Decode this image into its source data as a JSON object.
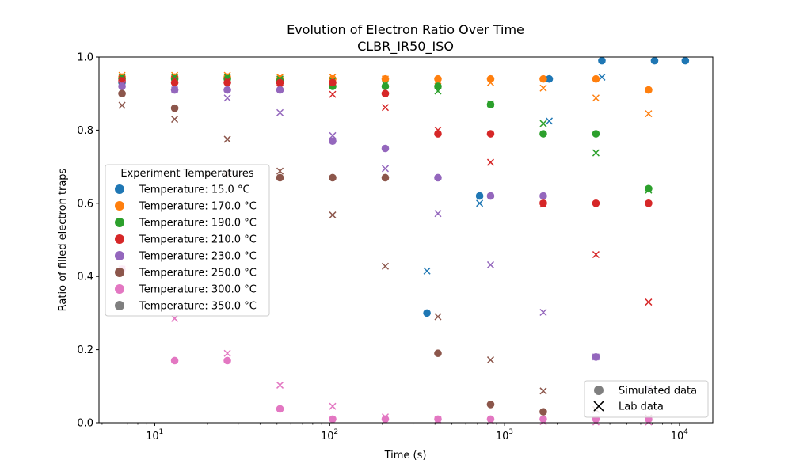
{
  "chart_data": {
    "type": "scatter",
    "title": "Evolution of Electron Ratio Over Time",
    "subtitle": "CLBR_IR50_ISO",
    "xlabel": "Time (s)",
    "ylabel": "Ratio of filled electron traps",
    "xscale": "log",
    "xlim": [
      4.8,
      15500
    ],
    "ylim": [
      0,
      1.0
    ],
    "x_ticks": [
      {
        "value": 10,
        "label": "10"
      },
      {
        "value": 100,
        "label": "10"
      },
      {
        "value": 1000,
        "label": "10"
      },
      {
        "value": 10000,
        "label": "10"
      }
    ],
    "x_tick_exponents": [
      "1",
      "2",
      "3",
      "4"
    ],
    "y_ticks": [
      {
        "value": 0.0,
        "label": "0.0"
      },
      {
        "value": 0.2,
        "label": "0.2"
      },
      {
        "value": 0.4,
        "label": "0.4"
      },
      {
        "value": 0.6,
        "label": "0.6"
      },
      {
        "value": 0.8,
        "label": "0.8"
      },
      {
        "value": 1.0,
        "label": "1.0"
      }
    ],
    "grid": false,
    "legend": {
      "title": "Experiment Temperatures",
      "placement": "center-left",
      "entries": [
        {
          "label": "Temperature: 15.0 °C",
          "color": "#1f77b4"
        },
        {
          "label": "Temperature: 170.0 °C",
          "color": "#ff7f0e"
        },
        {
          "label": "Temperature: 190.0 °C",
          "color": "#2ca02c"
        },
        {
          "label": "Temperature: 210.0 °C",
          "color": "#d62728"
        },
        {
          "label": "Temperature: 230.0 °C",
          "color": "#9467bd"
        },
        {
          "label": "Temperature: 250.0 °C",
          "color": "#8c564b"
        },
        {
          "label": "Temperature: 300.0 °C",
          "color": "#e377c2"
        },
        {
          "label": "Temperature: 350.0 °C",
          "color": "#7f7f7f"
        }
      ]
    },
    "marker_legend": {
      "placement": "lower-right",
      "entries": [
        {
          "label": "Simulated data",
          "marker": "circle"
        },
        {
          "label": "Lab data",
          "marker": "x"
        }
      ]
    },
    "series": [
      {
        "color": "#1f77b4",
        "simulated": {
          "x": [
            6.5,
            360,
            720,
            1800,
            3600,
            7200,
            10800
          ],
          "y": [
            0.93,
            0.3,
            0.62,
            0.94,
            0.99,
            0.99,
            0.99
          ]
        },
        "lab": {
          "x": [
            360,
            720,
            1800,
            3600
          ],
          "y": [
            0.415,
            0.6,
            0.825,
            0.945
          ]
        }
      },
      {
        "color": "#ff7f0e",
        "simulated": {
          "x": [
            6.5,
            13,
            26,
            52,
            104,
            208,
            416,
            832,
            1664,
            3328,
            6656
          ],
          "y": [
            0.945,
            0.945,
            0.945,
            0.94,
            0.94,
            0.94,
            0.94,
            0.94,
            0.94,
            0.94,
            0.91
          ]
        },
        "lab": {
          "x": [
            6.5,
            13,
            26,
            52,
            104,
            208,
            416,
            832,
            1664,
            3328,
            6656
          ],
          "y": [
            0.95,
            0.95,
            0.95,
            0.945,
            0.945,
            0.94,
            0.935,
            0.93,
            0.915,
            0.888,
            0.845
          ]
        }
      },
      {
        "color": "#2ca02c",
        "simulated": {
          "x": [
            6.5,
            13,
            26,
            52,
            104,
            208,
            416,
            832,
            1664,
            3328,
            6656
          ],
          "y": [
            0.94,
            0.94,
            0.94,
            0.935,
            0.92,
            0.92,
            0.92,
            0.87,
            0.79,
            0.79,
            0.64
          ]
        },
        "lab": {
          "x": [
            6.5,
            13,
            26,
            52,
            104,
            208,
            416,
            832,
            1664,
            3328,
            6656
          ],
          "y": [
            0.945,
            0.945,
            0.945,
            0.94,
            0.935,
            0.925,
            0.907,
            0.872,
            0.818,
            0.738,
            0.636
          ]
        }
      },
      {
        "color": "#d62728",
        "simulated": {
          "x": [
            6.5,
            13,
            26,
            52,
            104,
            208,
            416,
            832,
            1664,
            3328,
            6656
          ],
          "y": [
            0.935,
            0.93,
            0.93,
            0.93,
            0.93,
            0.9,
            0.79,
            0.79,
            0.6,
            0.6,
            0.6
          ]
        },
        "lab": {
          "x": [
            6.5,
            13,
            26,
            52,
            104,
            208,
            416,
            832,
            1664,
            3328,
            6656
          ],
          "y": [
            0.94,
            0.94,
            0.935,
            0.915,
            0.898,
            0.862,
            0.8,
            0.712,
            0.598,
            0.46,
            0.33
          ]
        }
      },
      {
        "color": "#9467bd",
        "simulated": {
          "x": [
            6.5,
            13,
            26,
            52,
            104,
            208,
            416,
            832,
            1664,
            3328
          ],
          "y": [
            0.92,
            0.91,
            0.91,
            0.91,
            0.77,
            0.75,
            0.67,
            0.62,
            0.62,
            0.18
          ]
        },
        "lab": {
          "x": [
            6.5,
            13,
            26,
            52,
            104,
            208,
            416,
            832,
            1664,
            3328,
            6656
          ],
          "y": [
            0.925,
            0.91,
            0.888,
            0.848,
            0.785,
            0.695,
            0.572,
            0.432,
            0.302,
            0.18,
            0.095
          ]
        }
      },
      {
        "color": "#8c564b",
        "simulated": {
          "x": [
            6.5,
            13,
            26,
            52,
            104,
            208,
            416,
            832,
            1664
          ],
          "y": [
            0.9,
            0.86,
            0.68,
            0.67,
            0.67,
            0.67,
            0.19,
            0.05,
            0.03
          ]
        },
        "lab": {
          "x": [
            6.5,
            13,
            26,
            52,
            104,
            208,
            416,
            832,
            1664,
            3328,
            6656
          ],
          "y": [
            0.868,
            0.83,
            0.775,
            0.688,
            0.568,
            0.428,
            0.29,
            0.172,
            0.087,
            0.036,
            0.013
          ]
        }
      },
      {
        "color": "#e377c2",
        "simulated": {
          "x": [
            6.5,
            13,
            26,
            52,
            104,
            208,
            416,
            832,
            1664,
            3328,
            6656
          ],
          "y": [
            0.42,
            0.17,
            0.17,
            0.038,
            0.01,
            0.01,
            0.01,
            0.01,
            0.01,
            0.01,
            0.01
          ]
        },
        "lab": {
          "x": [
            6.5,
            13,
            26,
            52,
            104,
            208,
            416,
            832,
            1664,
            3328,
            6656
          ],
          "y": [
            0.42,
            0.285,
            0.19,
            0.103,
            0.045,
            0.016,
            0.008,
            0.005,
            0.003,
            0.002,
            0.002
          ]
        }
      },
      {
        "color": "#7f7f7f",
        "simulated": {
          "x": [],
          "y": []
        },
        "lab": {
          "x": [],
          "y": []
        }
      }
    ]
  }
}
